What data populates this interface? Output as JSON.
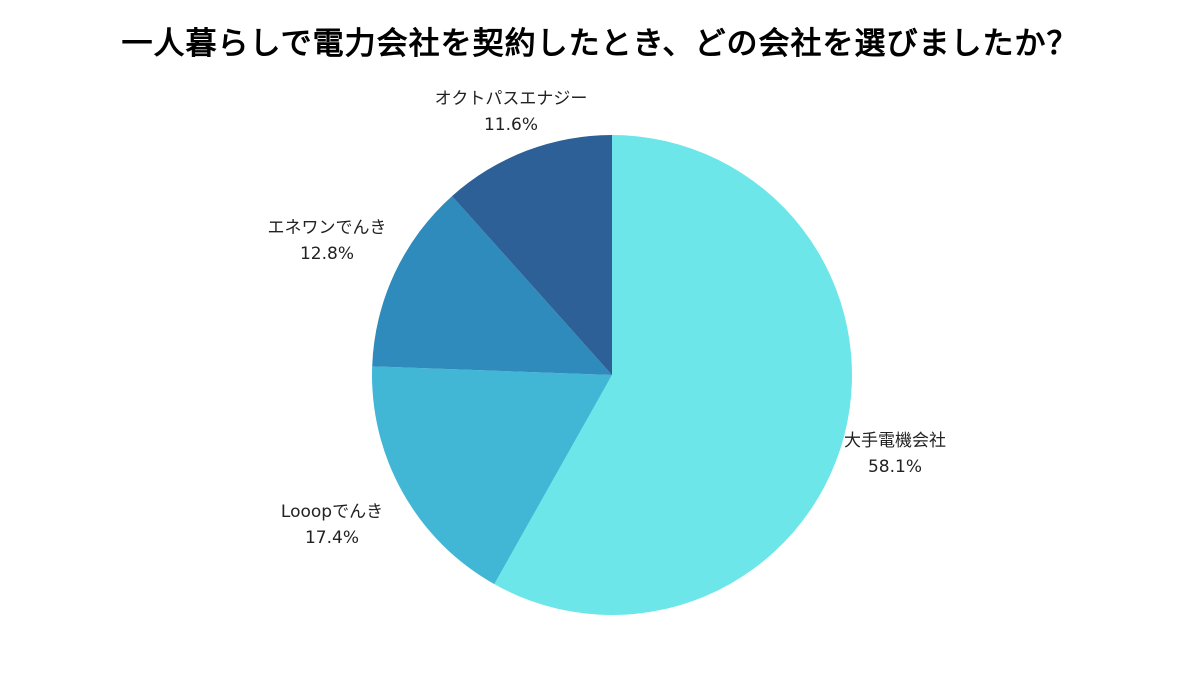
{
  "chart_data": {
    "type": "pie",
    "title": "一人暮らしで電力会社を契約したとき、どの会社を選びましたか？",
    "slices": [
      {
        "label": "大手電機会社",
        "value": 58.1,
        "value_text": "58.1%",
        "color": "#6de6ea"
      },
      {
        "label": "Looopでんき",
        "value": 17.4,
        "value_text": "17.4%",
        "color": "#41b7d5"
      },
      {
        "label": "エネワンでんき",
        "value": 12.8,
        "value_text": "12.8%",
        "color": "#2e8bbb"
      },
      {
        "label": "オクトパスエナジー",
        "value": 11.6,
        "value_text": "11.6%",
        "color": "#2d6097"
      }
    ],
    "start_angle": "12 o'clock",
    "direction": "clockwise",
    "legend": "none"
  }
}
